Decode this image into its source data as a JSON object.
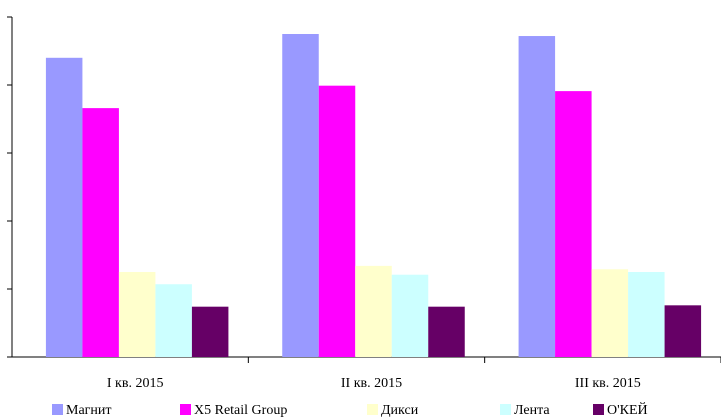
{
  "chart_data": {
    "type": "bar",
    "categories": [
      "I кв. 2015",
      "II кв. 2015",
      "III кв. 2015"
    ],
    "series": [
      {
        "name": "Магнит",
        "color": "#9999ff",
        "values": [
          4.4,
          4.75,
          4.72
        ]
      },
      {
        "name": "X5 Retail Group",
        "color": "#ff00ff",
        "values": [
          3.66,
          3.99,
          3.91
        ]
      },
      {
        "name": "Дикси",
        "color": "#ffffcc",
        "values": [
          1.25,
          1.34,
          1.29
        ]
      },
      {
        "name": "Лента",
        "color": "#ccffff",
        "values": [
          1.07,
          1.21,
          1.25
        ]
      },
      {
        "name": "О'КЕЙ",
        "color": "#660066",
        "values": [
          0.74,
          0.74,
          0.76
        ]
      }
    ],
    "ylim": [
      0,
      5
    ],
    "yticks": [
      0,
      1,
      2,
      3,
      4,
      5
    ],
    "legend": "bottom"
  }
}
